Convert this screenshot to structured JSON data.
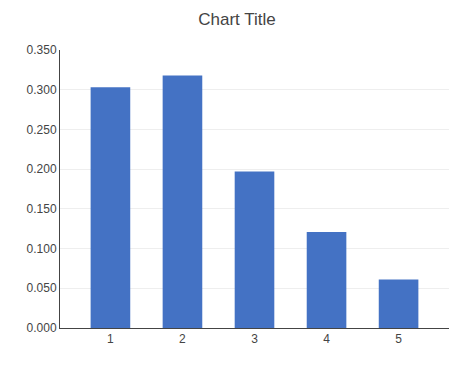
{
  "chart_data": {
    "type": "bar",
    "title": "Chart Title",
    "x": [
      1,
      2,
      3,
      4,
      5
    ],
    "values": [
      0.303,
      0.318,
      0.197,
      0.121,
      0.061
    ],
    "color": "#4472C4",
    "xlim": [
      0.3,
      5.7
    ],
    "xticks": [
      1,
      2,
      3,
      4,
      5
    ],
    "ylim": [
      0,
      0.35
    ],
    "yticks": [
      {
        "value": 0,
        "label": "0.000"
      },
      {
        "value": 0.05,
        "label": "0.050"
      },
      {
        "value": 0.1,
        "label": "0.100"
      },
      {
        "value": 0.15,
        "label": "0.150"
      },
      {
        "value": 0.2,
        "label": "0.200"
      },
      {
        "value": 0.25,
        "label": "0.250"
      },
      {
        "value": 0.3,
        "label": "0.300"
      },
      {
        "value": 0.35,
        "label": "0.350"
      }
    ],
    "grid": true
  }
}
